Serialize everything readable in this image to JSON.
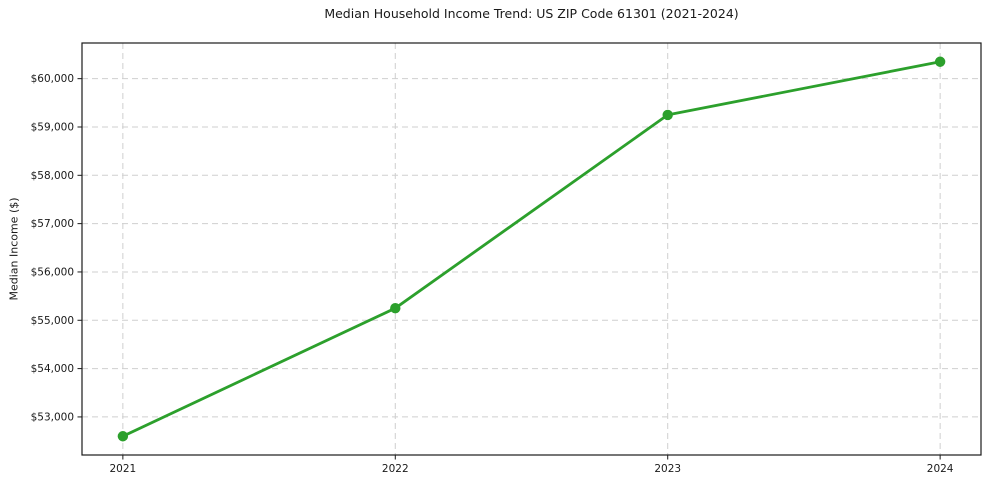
{
  "chart_data": {
    "type": "line",
    "title": "Median Household Income Trend: US ZIP Code 61301 (2021-2024)",
    "xlabel": "",
    "ylabel": "Median Income ($)",
    "x": [
      2021,
      2022,
      2023,
      2024
    ],
    "x_tick_labels": [
      "2021",
      "2022",
      "2023",
      "2024"
    ],
    "values": [
      52600,
      55250,
      59250,
      60350
    ],
    "y_ticks": [
      53000,
      54000,
      55000,
      56000,
      57000,
      58000,
      59000,
      60000
    ],
    "y_tick_labels": [
      "$53,000",
      "$54,000",
      "$55,000",
      "$56,000",
      "$57,000",
      "$58,000",
      "$59,000",
      "$60,000"
    ],
    "xlim": [
      2020.85,
      2024.15
    ],
    "ylim": [
      52212,
      60738
    ],
    "grid": true,
    "grid_style": "dashed",
    "legend": "none",
    "line_color": "#2ca02c",
    "marker": "circle",
    "grid_color": "#cfcfcf",
    "frame_color": "#1a1a1a",
    "background_color": "#ffffff"
  }
}
